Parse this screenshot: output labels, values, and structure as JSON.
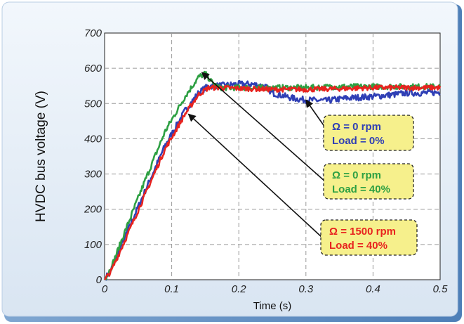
{
  "chart_data": {
    "type": "line",
    "xlabel": "Time (s)",
    "ylabel": "HVDC bus voltage (V)",
    "xlim": [
      0,
      0.5
    ],
    "ylim": [
      0,
      700
    ],
    "x_ticks": [
      "0",
      "0.1",
      "0.2",
      "0.3",
      "0.4",
      "0.5"
    ],
    "y_ticks": [
      "0",
      "100",
      "200",
      "300",
      "400",
      "500",
      "600",
      "700"
    ],
    "grid": true,
    "series": [
      {
        "color": "#2f3fb5",
        "x": [
          0,
          0.01,
          0.03,
          0.06,
          0.09,
          0.12,
          0.14,
          0.155,
          0.17,
          0.2,
          0.22,
          0.24,
          0.25,
          0.28,
          0.3,
          0.33,
          0.36,
          0.4,
          0.43,
          0.45,
          0.48,
          0.5
        ],
        "y": [
          0,
          30,
          120,
          250,
          380,
          480,
          530,
          550,
          550,
          555,
          555,
          548,
          530,
          515,
          510,
          508,
          515,
          520,
          525,
          530,
          530,
          532
        ]
      },
      {
        "color": "#2ea043",
        "x": [
          0,
          0.01,
          0.03,
          0.06,
          0.09,
          0.12,
          0.14,
          0.15,
          0.16,
          0.17,
          0.2,
          0.25,
          0.3,
          0.35,
          0.4,
          0.45,
          0.5
        ],
        "y": [
          0,
          35,
          135,
          280,
          420,
          520,
          575,
          585,
          560,
          545,
          545,
          545,
          545,
          548,
          548,
          548,
          548
        ]
      },
      {
        "color": "#e8231f",
        "x": [
          0,
          0.01,
          0.03,
          0.06,
          0.09,
          0.12,
          0.14,
          0.155,
          0.17,
          0.2,
          0.25,
          0.3,
          0.35,
          0.4,
          0.45,
          0.5
        ],
        "y": [
          0,
          25,
          110,
          240,
          370,
          470,
          525,
          545,
          545,
          543,
          540,
          540,
          542,
          545,
          545,
          545
        ]
      }
    ],
    "annotations": [
      {
        "line1": "Ω = 0 rpm",
        "line2": "Load = 0%",
        "text_color": "#2f3fb5",
        "target": [
          0.3,
          510
        ]
      },
      {
        "line1": "Ω = 0 rpm",
        "line2": "Load = 40%",
        "text_color": "#2ea043",
        "target": [
          0.145,
          588
        ]
      },
      {
        "line1": "Ω = 1500 rpm",
        "line2": "Load = 40%",
        "text_color": "#e8231f",
        "target": [
          0.125,
          470
        ]
      }
    ],
    "background": "#e3ecf7"
  }
}
